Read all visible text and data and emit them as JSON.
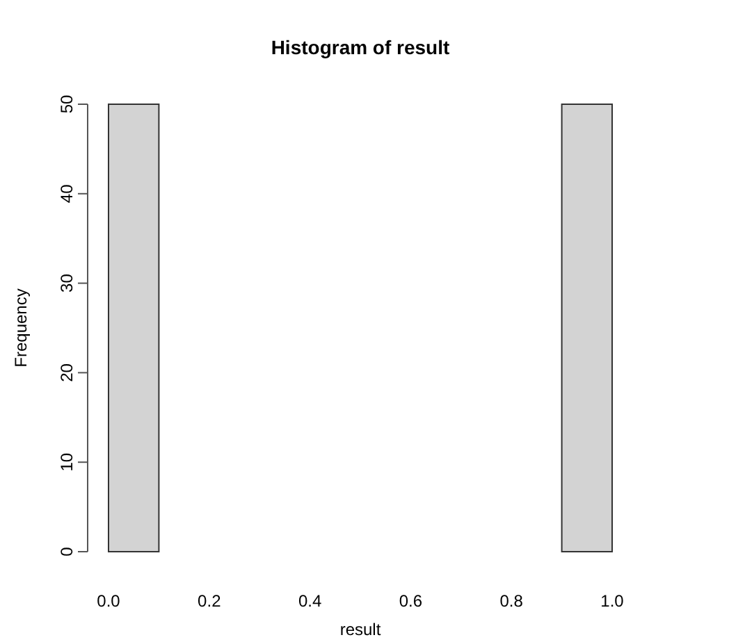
{
  "chart_data": {
    "type": "histogram",
    "title": "Histogram of result",
    "xlabel": "result",
    "ylabel": "Frequency",
    "bins": [
      0,
      0.1,
      0.2,
      0.3,
      0.4,
      0.5,
      0.6,
      0.7,
      0.8,
      0.9,
      1
    ],
    "values": [
      50,
      0,
      0,
      0,
      0,
      0,
      0,
      0,
      0,
      50
    ],
    "color": "#d3d3d3",
    "xlim": [
      0,
      1
    ],
    "ylim": [
      0,
      50
    ],
    "xticks": [
      {
        "value": 0,
        "label": "0.0"
      },
      0.2,
      0.4,
      0.6,
      0.8,
      {
        "value": 1,
        "label": "1.0"
      }
    ],
    "yticks": [
      0,
      10,
      20,
      30,
      40,
      50
    ]
  }
}
